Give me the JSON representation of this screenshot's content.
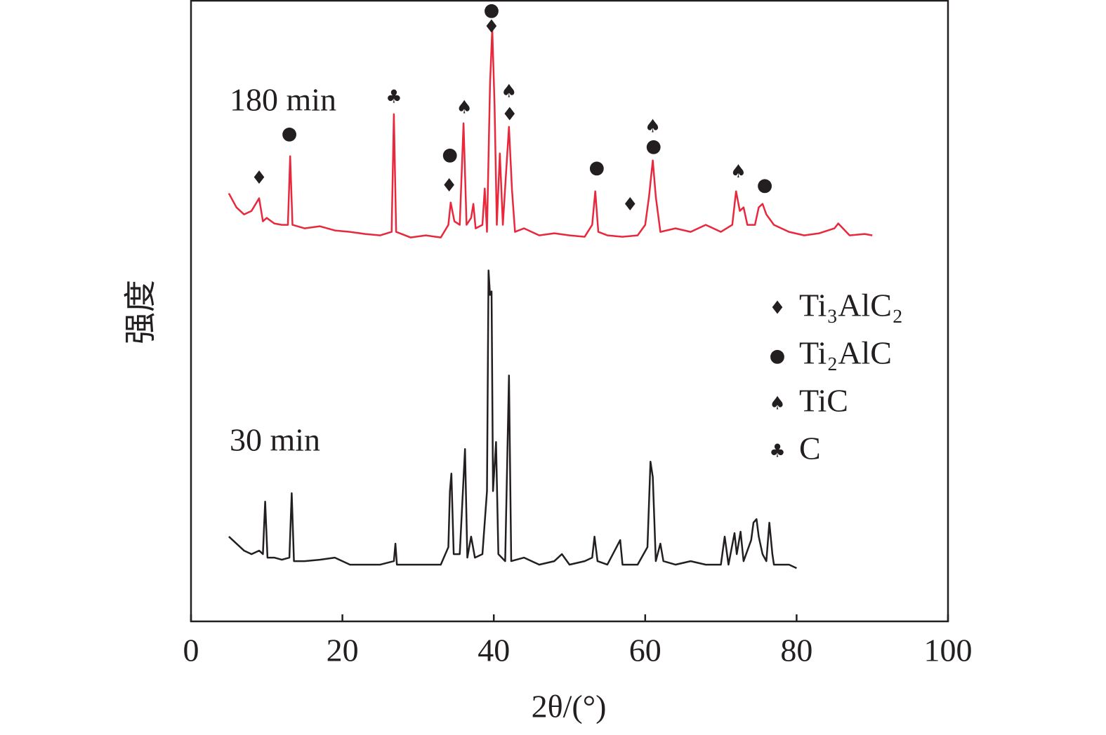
{
  "chart_data": {
    "type": "line",
    "x_label": "2θ/(°)",
    "y_label": "强度",
    "xlim": [
      0,
      100
    ],
    "xticks": [
      0,
      20,
      40,
      60,
      80,
      100
    ],
    "ylim": [
      0,
      886
    ],
    "series": [
      {
        "name": "180 min",
        "color": "#e8283c",
        "x": [
          5,
          6,
          7,
          8,
          9,
          9.5,
          10,
          11,
          12,
          12.8,
          13.1,
          13.4,
          15,
          17,
          19,
          21,
          23,
          25,
          26.5,
          26.8,
          27.1,
          29,
          31,
          33,
          34,
          34.3,
          34.8,
          35.5,
          36,
          36.4,
          37,
          37.3,
          37.6,
          38.5,
          38.8,
          39.1,
          39.5,
          39.8,
          40.1,
          40.4,
          40.8,
          41.2,
          41.6,
          42,
          42.4,
          42.8,
          44,
          46,
          48,
          50,
          52,
          53,
          53.4,
          53.8,
          55,
          57,
          59,
          60,
          60.5,
          61,
          61.4,
          62,
          64,
          66,
          68,
          70,
          71.5,
          72,
          72.5,
          73,
          73.5,
          74.5,
          75,
          75.5,
          76,
          77,
          79,
          81,
          83,
          85,
          85.5,
          87,
          89,
          90
        ],
        "values": [
          611,
          591,
          581,
          586,
          604,
          571,
          576,
          568,
          566,
          566,
          664,
          566,
          561,
          564,
          558,
          556,
          553,
          551,
          556,
          724,
          556,
          548,
          551,
          548,
          566,
          598,
          571,
          566,
          711,
          566,
          576,
          596,
          561,
          566,
          618,
          556,
          766,
          846,
          736,
          566,
          668,
          566,
          636,
          706,
          616,
          556,
          561,
          551,
          554,
          551,
          549,
          566,
          614,
          556,
          551,
          549,
          551,
          566,
          606,
          658,
          606,
          556,
          561,
          556,
          566,
          556,
          566,
          614,
          586,
          591,
          566,
          566,
          591,
          596,
          581,
          566,
          556,
          551,
          554,
          561,
          568,
          551,
          553,
          551
        ]
      },
      {
        "name": "30 min",
        "color": "#231f20",
        "x": [
          5,
          6,
          7,
          8,
          9,
          9.5,
          9.8,
          10.1,
          11,
          12,
          13,
          13.3,
          13.6,
          15,
          17,
          19,
          21,
          23,
          25,
          26.8,
          27,
          27.2,
          29,
          31,
          33,
          34,
          34.2,
          34.4,
          34.7,
          35.5,
          36.2,
          36.5,
          37,
          37.5,
          38.5,
          39.1,
          39.3,
          39.5,
          39.7,
          39.9,
          40.3,
          40.6,
          41.5,
          42,
          42.3,
          44,
          46,
          48,
          49,
          50,
          52,
          53,
          53.3,
          53.7,
          55,
          56.7,
          57,
          59,
          60.3,
          60.7,
          61,
          61.4,
          62,
          62.4,
          64,
          66,
          68,
          70,
          70.5,
          71,
          71.8,
          72.1,
          72.6,
          73,
          74,
          74.3,
          74.7,
          75,
          75.5,
          76,
          76.4,
          76.8,
          77,
          79,
          80
        ],
        "values": [
          121,
          111,
          101,
          96,
          101,
          96,
          171,
          91,
          91,
          88,
          91,
          183,
          86,
          86,
          88,
          91,
          81,
          81,
          81,
          86,
          111,
          81,
          81,
          81,
          81,
          106,
          186,
          211,
          96,
          96,
          246,
          91,
          121,
          91,
          96,
          186,
          501,
          466,
          471,
          186,
          256,
          96,
          86,
          351,
          86,
          91,
          81,
          86,
          96,
          81,
          86,
          91,
          121,
          86,
          81,
          116,
          81,
          81,
          106,
          228,
          206,
          86,
          111,
          86,
          81,
          86,
          81,
          81,
          121,
          81,
          126,
          96,
          128,
          86,
          116,
          141,
          146,
          121,
          96,
          86,
          141,
          96,
          81,
          81,
          76
        ]
      }
    ],
    "phases": [
      {
        "name": "Ti₃AlC₂",
        "symbol": "♦",
        "peaks": [
          {
            "x": 9,
            "y": 632
          },
          {
            "x": 34.1,
            "y": 621
          },
          {
            "x": 39.7,
            "y": 848
          },
          {
            "x": 42.1,
            "y": 723
          },
          {
            "x": 58,
            "y": 594
          }
        ]
      },
      {
        "name": "Ti₂AlC",
        "symbol": "●",
        "peaks": [
          {
            "x": 13,
            "y": 696
          },
          {
            "x": 34.2,
            "y": 666
          },
          {
            "x": 39.7,
            "y": 872
          },
          {
            "x": 53.6,
            "y": 647
          },
          {
            "x": 61.1,
            "y": 678
          },
          {
            "x": 75.8,
            "y": 622
          }
        ]
      },
      {
        "name": "TiC",
        "symbol": "♠",
        "peaks": [
          {
            "x": 36.1,
            "y": 733
          },
          {
            "x": 42,
            "y": 756
          },
          {
            "x": 61,
            "y": 706
          },
          {
            "x": 72.3,
            "y": 641
          }
        ]
      },
      {
        "name": "C",
        "symbol": "♣",
        "peaks": [
          {
            "x": 26.8,
            "y": 748
          }
        ]
      }
    ]
  }
}
